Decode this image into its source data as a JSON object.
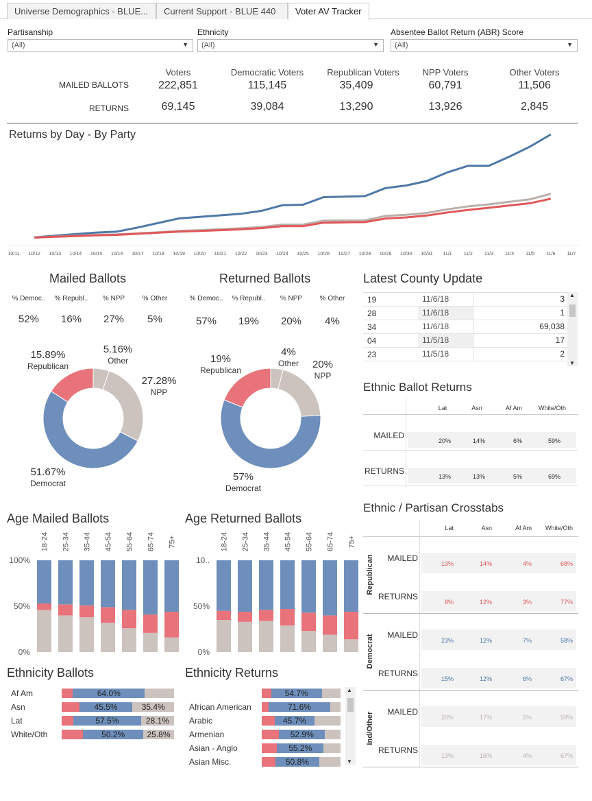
{
  "tabs": [
    {
      "label": "Universe Demographics - BLUE..."
    },
    {
      "label": "Current Support - BLUE 440"
    },
    {
      "label": "Voter AV Tracker"
    }
  ],
  "filters": [
    {
      "label": "Partisanship",
      "value": "(All)"
    },
    {
      "label": "Ethnicity",
      "value": "(All)"
    },
    {
      "label": "Absentee Ballot Return (ABR) Score",
      "value": "(All)"
    }
  ],
  "summary": {
    "columns": [
      "Voters",
      "Democratic Voters",
      "Republican Voters",
      "NPP Voters",
      "Other Voters"
    ],
    "rows": [
      {
        "label": "MAILED BALLOTS",
        "values": [
          "222,851",
          "115,145",
          "35,409",
          "60,791",
          "11,506"
        ]
      },
      {
        "label": "RETURNS",
        "values": [
          "69,145",
          "39,084",
          "13,290",
          "13,926",
          "2,845"
        ]
      }
    ]
  },
  "colors": {
    "democrat": "#6e8fbb",
    "republican": "#e8737a",
    "other": "#ccc3bf",
    "line_dem": "#4e79a7",
    "line_rep": "#e15759",
    "line_other": "#bab0ac"
  },
  "returns_chart": {
    "title": "Returns by Day - By Party",
    "chart_data": {
      "type": "line",
      "x": [
        "10/11",
        "10/12",
        "10/13",
        "10/14",
        "10/15",
        "10/16",
        "10/17",
        "10/18",
        "10/19",
        "10/20",
        "10/21",
        "10/22",
        "10/23",
        "10/24",
        "10/25",
        "10/26",
        "10/27",
        "10/28",
        "10/29",
        "10/30",
        "10/31",
        "11/1",
        "11/2",
        "11/3",
        "11/4",
        "11/5",
        "11/6",
        "11/7"
      ],
      "series": [
        {
          "name": "Democrat",
          "values": [
            null,
            1200,
            3000,
            4500,
            6000,
            7000,
            11000,
            15500,
            20000,
            21500,
            23000,
            24500,
            27500,
            33000,
            33500,
            41000,
            41500,
            42000,
            50000,
            52500,
            57000,
            65500,
            72000,
            72000,
            81000,
            91000,
            103000,
            null
          ]
        },
        {
          "name": "Other",
          "values": [
            null,
            1000,
            2000,
            2900,
            3800,
            4200,
            5200,
            6300,
            7600,
            8400,
            9300,
            10200,
            11500,
            13900,
            13900,
            17800,
            17900,
            18000,
            22500,
            23600,
            25400,
            29000,
            31900,
            33900,
            36400,
            38900,
            44300,
            null
          ]
        },
        {
          "name": "Republican",
          "values": [
            null,
            1000,
            1800,
            2500,
            3300,
            3700,
            4800,
            5900,
            6900,
            7600,
            8400,
            9200,
            10400,
            12400,
            12400,
            15800,
            16100,
            16300,
            19900,
            21000,
            22800,
            25900,
            28400,
            30500,
            32800,
            35000,
            39400,
            null
          ]
        }
      ]
    }
  },
  "mailed_ballots": {
    "title": "Mailed Ballots",
    "headers": [
      "% Democ..",
      "% Republ..",
      "% NPP",
      "% Other"
    ],
    "values": [
      "52%",
      "16%",
      "27%",
      "5%"
    ],
    "chart_data": {
      "type": "pie",
      "labels": [
        "Democrat",
        "Republican",
        "Other",
        "NPP"
      ],
      "values": [
        51.67,
        15.89,
        5.16,
        27.28
      ],
      "display": [
        "51.67%",
        "15.89%",
        "5.16%",
        "27.28%"
      ]
    }
  },
  "returned_ballots": {
    "title": "Returned Ballots",
    "headers": [
      "% Democ..",
      "% Republ..",
      "% NPP",
      "% Other"
    ],
    "values": [
      "57%",
      "19%",
      "20%",
      "4%"
    ],
    "chart_data": {
      "type": "pie",
      "labels": [
        "Democrat",
        "Republican",
        "Other",
        "NPP"
      ],
      "values": [
        57,
        19,
        4,
        20
      ],
      "display": [
        "57%",
        "19%",
        "4%",
        "20%"
      ]
    }
  },
  "county_update": {
    "title": "Latest County Update",
    "rows": [
      {
        "code": "19",
        "date": "11/6/18",
        "count": "3"
      },
      {
        "code": "28",
        "date": "11/6/18",
        "count": "1"
      },
      {
        "code": "34",
        "date": "11/6/18",
        "count": "69,038"
      },
      {
        "code": "04",
        "date": "11/5/18",
        "count": "17"
      },
      {
        "code": "23",
        "date": "11/5/18",
        "count": "2"
      }
    ]
  },
  "ethnic_returns": {
    "title": "Ethnic Ballot Returns",
    "columns": [
      "Lat",
      "Asn",
      "Af Am",
      "White/Oth"
    ],
    "rows": [
      {
        "label": "MAILED",
        "values": [
          "20%",
          "14%",
          "6%",
          "59%"
        ]
      },
      {
        "label": "RETURNS",
        "values": [
          "13%",
          "13%",
          "5%",
          "69%"
        ]
      }
    ]
  },
  "crosstabs": {
    "title": "Ethnic / Partisan Crosstabs",
    "columns": [
      "Lat",
      "Asn",
      "Af Am",
      "White/Oth"
    ],
    "groups": [
      {
        "label": "Republican",
        "color": "#e15759",
        "rows": [
          {
            "label": "MAILED",
            "values": [
              "13%",
              "14%",
              "4%",
              "68%"
            ]
          },
          {
            "label": "RETURNS",
            "values": [
              "8%",
              "12%",
              "3%",
              "77%"
            ]
          }
        ]
      },
      {
        "label": "Democrat",
        "color": "#4e79a7",
        "rows": [
          {
            "label": "MAILED",
            "values": [
              "23%",
              "12%",
              "7%",
              "58%"
            ]
          },
          {
            "label": "RETURNS",
            "values": [
              "15%",
              "12%",
              "6%",
              "67%"
            ]
          }
        ]
      },
      {
        "label": "Ind/Other",
        "color": "#bab0ac",
        "rows": [
          {
            "label": "MAILED",
            "values": [
              "20%",
              "17%",
              "5%",
              "59%"
            ]
          },
          {
            "label": "RETURNS",
            "values": [
              "13%",
              "16%",
              "4%",
              "67%"
            ]
          }
        ]
      }
    ]
  },
  "age_mailed": {
    "title": "Age Mailed Ballots",
    "y_ticks": [
      "100%",
      "50%",
      "0%"
    ],
    "chart_data": {
      "type": "bar",
      "stacked": true,
      "categories": [
        "18-24",
        "25-34",
        "35-44",
        "45-54",
        "55-64",
        "65-74",
        "75+"
      ],
      "series": [
        {
          "name": "Other",
          "values": [
            46,
            40,
            38,
            32,
            26,
            21,
            16
          ]
        },
        {
          "name": "Republican",
          "values": [
            7,
            12,
            13,
            17,
            20,
            20,
            28
          ]
        },
        {
          "name": "Democrat",
          "values": [
            47,
            48,
            49,
            51,
            54,
            59,
            56
          ]
        }
      ]
    }
  },
  "age_returned": {
    "title": "Age Returned Ballots",
    "y_ticks": [
      "10..",
      "50%",
      "0%"
    ],
    "chart_data": {
      "type": "bar",
      "stacked": true,
      "categories": [
        "18-24",
        "25-34",
        "35-44",
        "45-54",
        "55-64",
        "65-74",
        "75+"
      ],
      "series": [
        {
          "name": "Other",
          "values": [
            35,
            33,
            34,
            29,
            23,
            19,
            14
          ]
        },
        {
          "name": "Republican",
          "values": [
            10,
            11,
            12,
            18,
            20,
            21,
            30
          ]
        },
        {
          "name": "Democrat",
          "values": [
            55,
            56,
            54,
            53,
            57,
            60,
            56
          ]
        }
      ]
    }
  },
  "ethnicity_ballots": {
    "title": "Ethnicity Ballots",
    "rows": [
      {
        "label": "Af Am",
        "rep": 10,
        "dem": 64.0,
        "oth": 26,
        "dem_label": "64.0%",
        "oth_label": ""
      },
      {
        "label": "Asn",
        "rep": 15,
        "dem": 45.5,
        "oth": 35.4,
        "dem_label": "45.5%",
        "oth_label": "35.4%"
      },
      {
        "label": "Lat",
        "rep": 10,
        "dem": 57.5,
        "oth": 28.1,
        "dem_label": "57.5%",
        "oth_label": "28.1%"
      },
      {
        "label": "White/Oth",
        "rep": 18,
        "dem": 50.2,
        "oth": 25.8,
        "dem_label": "50.2%",
        "oth_label": "25.8%"
      }
    ]
  },
  "ethnicity_returns": {
    "title": "Ethnicity Returns",
    "rows": [
      {
        "label": "",
        "rep": 10,
        "dem": 54.7,
        "oth": 20,
        "dem_label": "54.7%"
      },
      {
        "label": "African American",
        "rep": 8,
        "dem": 71.6,
        "oth": 12,
        "dem_label": "71.6%"
      },
      {
        "label": "Arabic",
        "rep": 15,
        "dem": 45.7,
        "oth": 30,
        "dem_label": "45.7%"
      },
      {
        "label": "Armenian",
        "rep": 20,
        "dem": 52.9,
        "oth": 18,
        "dem_label": "52.9%"
      },
      {
        "label": "Asian - Anglo",
        "rep": 18,
        "dem": 55.2,
        "oth": 20,
        "dem_label": "55.2%"
      },
      {
        "label": "Asian Misc.",
        "rep": 16,
        "dem": 50.8,
        "oth": 25,
        "dem_label": "50.8%"
      }
    ]
  }
}
